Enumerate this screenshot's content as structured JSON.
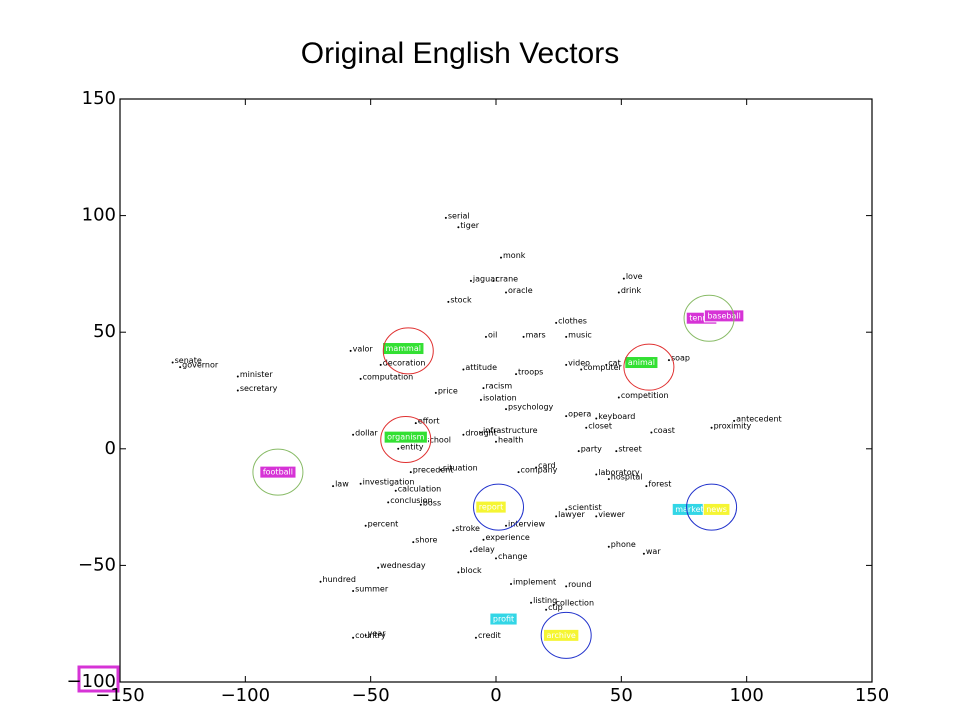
{
  "chart_data": {
    "type": "word-scatter",
    "title": "Original English Vectors",
    "xlim": [
      -150,
      150
    ],
    "ylim": [
      -100,
      150
    ],
    "xticks": [
      {
        "value": -150,
        "label": "−150"
      },
      {
        "value": -100,
        "label": "−100"
      },
      {
        "value": -50,
        "label": "−50"
      },
      0,
      50,
      100,
      150
    ],
    "yticks": [
      {
        "value": -100,
        "label": "−100"
      },
      {
        "value": -50,
        "label": "−50"
      },
      0,
      50,
      100,
      150
    ],
    "points": [
      {
        "label": "serial",
        "x": -20,
        "y": 99
      },
      {
        "label": "tiger",
        "x": -15,
        "y": 95
      },
      {
        "label": "monk",
        "x": 2,
        "y": 82
      },
      {
        "label": "jaguar",
        "x": -10,
        "y": 72
      },
      {
        "label": "crane",
        "x": -1,
        "y": 72
      },
      {
        "label": "oracle",
        "x": 4,
        "y": 67
      },
      {
        "label": "stock",
        "x": -19,
        "y": 63
      },
      {
        "label": "love",
        "x": 51,
        "y": 73
      },
      {
        "label": "drink",
        "x": 49,
        "y": 67
      },
      {
        "label": "clothes",
        "x": 24,
        "y": 54
      },
      {
        "label": "music",
        "x": 28,
        "y": 48
      },
      {
        "label": "oil",
        "x": -4,
        "y": 48
      },
      {
        "label": "mars",
        "x": 11,
        "y": 48
      },
      {
        "label": "valor",
        "x": -58,
        "y": 42
      },
      {
        "label": "decoration",
        "x": -46,
        "y": 36
      },
      {
        "label": "computation",
        "x": -54,
        "y": 30
      },
      {
        "label": "attitude",
        "x": -13,
        "y": 34
      },
      {
        "label": "troops",
        "x": 8,
        "y": 32
      },
      {
        "label": "video",
        "x": 28,
        "y": 36
      },
      {
        "label": "computer",
        "x": 34,
        "y": 34
      },
      {
        "label": "cat",
        "x": 44,
        "y": 36
      },
      {
        "label": "soap",
        "x": 69,
        "y": 38
      },
      {
        "label": "senate",
        "x": -129,
        "y": 37
      },
      {
        "label": "governor",
        "x": -126,
        "y": 35
      },
      {
        "label": "minister",
        "x": -103,
        "y": 31
      },
      {
        "label": "secretary",
        "x": -103,
        "y": 25
      },
      {
        "label": "price",
        "x": -24,
        "y": 24
      },
      {
        "label": "racism",
        "x": -5,
        "y": 26
      },
      {
        "label": "isolation",
        "x": -6,
        "y": 21
      },
      {
        "label": "competition",
        "x": 49,
        "y": 22
      },
      {
        "label": "psychology",
        "x": 4,
        "y": 17
      },
      {
        "label": "opera",
        "x": 28,
        "y": 14
      },
      {
        "label": "keyboard",
        "x": 40,
        "y": 13
      },
      {
        "label": "effort",
        "x": -32,
        "y": 11
      },
      {
        "label": "closet",
        "x": 36,
        "y": 9
      },
      {
        "label": "infrastructure",
        "x": -6,
        "y": 7
      },
      {
        "label": "coast",
        "x": 62,
        "y": 7
      },
      {
        "label": "drought",
        "x": -13,
        "y": 6
      },
      {
        "label": "dollar",
        "x": -57,
        "y": 6
      },
      {
        "label": "antecedent",
        "x": 95,
        "y": 12
      },
      {
        "label": "proximity",
        "x": 86,
        "y": 9
      },
      {
        "label": "health",
        "x": 0,
        "y": 3
      },
      {
        "label": "school",
        "x": -29,
        "y": 3
      },
      {
        "label": "entity",
        "x": -39,
        "y": 0
      },
      {
        "label": "party",
        "x": 33,
        "y": -1
      },
      {
        "label": "street",
        "x": 48,
        "y": -1
      },
      {
        "label": "precedent",
        "x": -34,
        "y": -10
      },
      {
        "label": "situation",
        "x": -22,
        "y": -9
      },
      {
        "label": "card",
        "x": 16,
        "y": -8
      },
      {
        "label": "company",
        "x": 9,
        "y": -10
      },
      {
        "label": "laboratory",
        "x": 40,
        "y": -11
      },
      {
        "label": "hospital",
        "x": 45,
        "y": -13
      },
      {
        "label": "law",
        "x": -65,
        "y": -16
      },
      {
        "label": "investigation",
        "x": -54,
        "y": -15
      },
      {
        "label": "forest",
        "x": 60,
        "y": -16
      },
      {
        "label": "calculation",
        "x": -40,
        "y": -18
      },
      {
        "label": "conclusion",
        "x": -43,
        "y": -23
      },
      {
        "label": "boss",
        "x": -30,
        "y": -24
      },
      {
        "label": "scientist",
        "x": 28,
        "y": -26
      },
      {
        "label": "lawyer",
        "x": 24,
        "y": -29
      },
      {
        "label": "viewer",
        "x": 40,
        "y": -29
      },
      {
        "label": "percent",
        "x": -52,
        "y": -33
      },
      {
        "label": "interview",
        "x": 4,
        "y": -33
      },
      {
        "label": "stroke",
        "x": -17,
        "y": -35
      },
      {
        "label": "shore",
        "x": -33,
        "y": -40
      },
      {
        "label": "experience",
        "x": -5,
        "y": -39
      },
      {
        "label": "delay",
        "x": -10,
        "y": -44
      },
      {
        "label": "phone",
        "x": 45,
        "y": -42
      },
      {
        "label": "change",
        "x": 0,
        "y": -47
      },
      {
        "label": "war",
        "x": 59,
        "y": -45
      },
      {
        "label": "wednesday",
        "x": -47,
        "y": -51
      },
      {
        "label": "block",
        "x": -15,
        "y": -53
      },
      {
        "label": "hundred",
        "x": -70,
        "y": -57
      },
      {
        "label": "implement",
        "x": 6,
        "y": -58
      },
      {
        "label": "round",
        "x": 28,
        "y": -59
      },
      {
        "label": "summer",
        "x": -57,
        "y": -61
      },
      {
        "label": "listing",
        "x": 14,
        "y": -66
      },
      {
        "label": "collection",
        "x": 23,
        "y": -67
      },
      {
        "label": "cup",
        "x": 20,
        "y": -69
      },
      {
        "label": "year",
        "x": -52,
        "y": -80
      },
      {
        "label": "country",
        "x": -57,
        "y": -81
      },
      {
        "label": "credit",
        "x": -8,
        "y": -81
      }
    ],
    "highlights": [
      {
        "label": "mammal",
        "x": -37,
        "y": 43,
        "color": "#33e033"
      },
      {
        "label": "animal",
        "x": 58,
        "y": 37,
        "color": "#33e033"
      },
      {
        "label": "organism",
        "x": -36,
        "y": 5,
        "color": "#33e033"
      },
      {
        "label": "football",
        "x": -87,
        "y": -10,
        "color": "#d633d6"
      },
      {
        "label": "tennis",
        "x": 82,
        "y": 56,
        "color": "#d633d6"
      },
      {
        "label": "baseball",
        "x": 91,
        "y": 57,
        "color": "#d633d6"
      },
      {
        "label": "report",
        "x": -2,
        "y": -25,
        "color": "#f5f533"
      },
      {
        "label": "markets",
        "x": 78,
        "y": -26,
        "color": "#33d6e6"
      },
      {
        "label": "news",
        "x": 88,
        "y": -26,
        "color": "#f5f533"
      },
      {
        "label": "profit",
        "x": 3,
        "y": -73,
        "color": "#33d6e6"
      },
      {
        "label": "archive",
        "x": 26,
        "y": -80,
        "color": "#f5f533"
      }
    ],
    "rings": [
      {
        "x": -35,
        "y": 42,
        "color": "#e03030"
      },
      {
        "x": 61,
        "y": 35,
        "color": "#e03030"
      },
      {
        "x": -36,
        "y": 4,
        "color": "#e03030"
      },
      {
        "x": -87,
        "y": -10,
        "color": "#88bb66"
      },
      {
        "x": 85,
        "y": 56,
        "color": "#88bb66"
      },
      {
        "x": 1,
        "y": -25,
        "color": "#2233cc"
      },
      {
        "x": 86,
        "y": -25,
        "color": "#2233cc"
      },
      {
        "x": 28,
        "y": -80,
        "color": "#2233cc"
      }
    ]
  }
}
